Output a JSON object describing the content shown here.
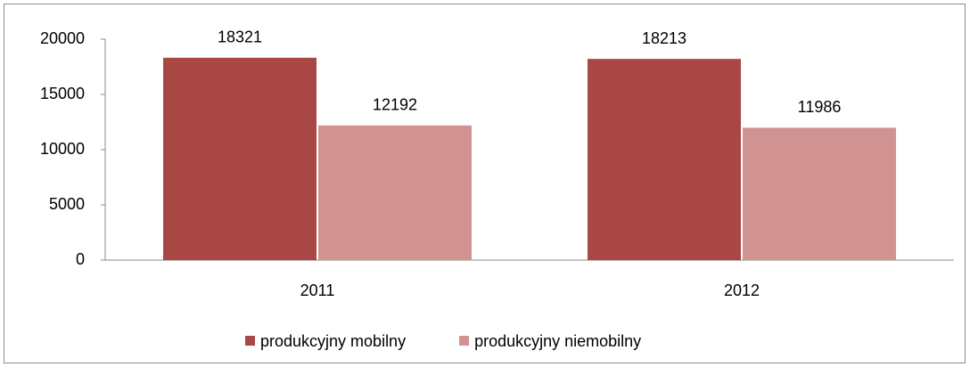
{
  "chart_data": {
    "type": "bar",
    "categories": [
      "2011",
      "2012"
    ],
    "series": [
      {
        "name": "produkcyjny mobilny",
        "color": "#a94745",
        "values": [
          18321,
          18213
        ]
      },
      {
        "name": "produkcyjny niemobilny",
        "color": "#d19391",
        "values": [
          12192,
          11986
        ]
      }
    ],
    "ylim": [
      0,
      20000
    ],
    "yticks": [
      0,
      5000,
      10000,
      15000,
      20000
    ],
    "legend": "bottom"
  }
}
